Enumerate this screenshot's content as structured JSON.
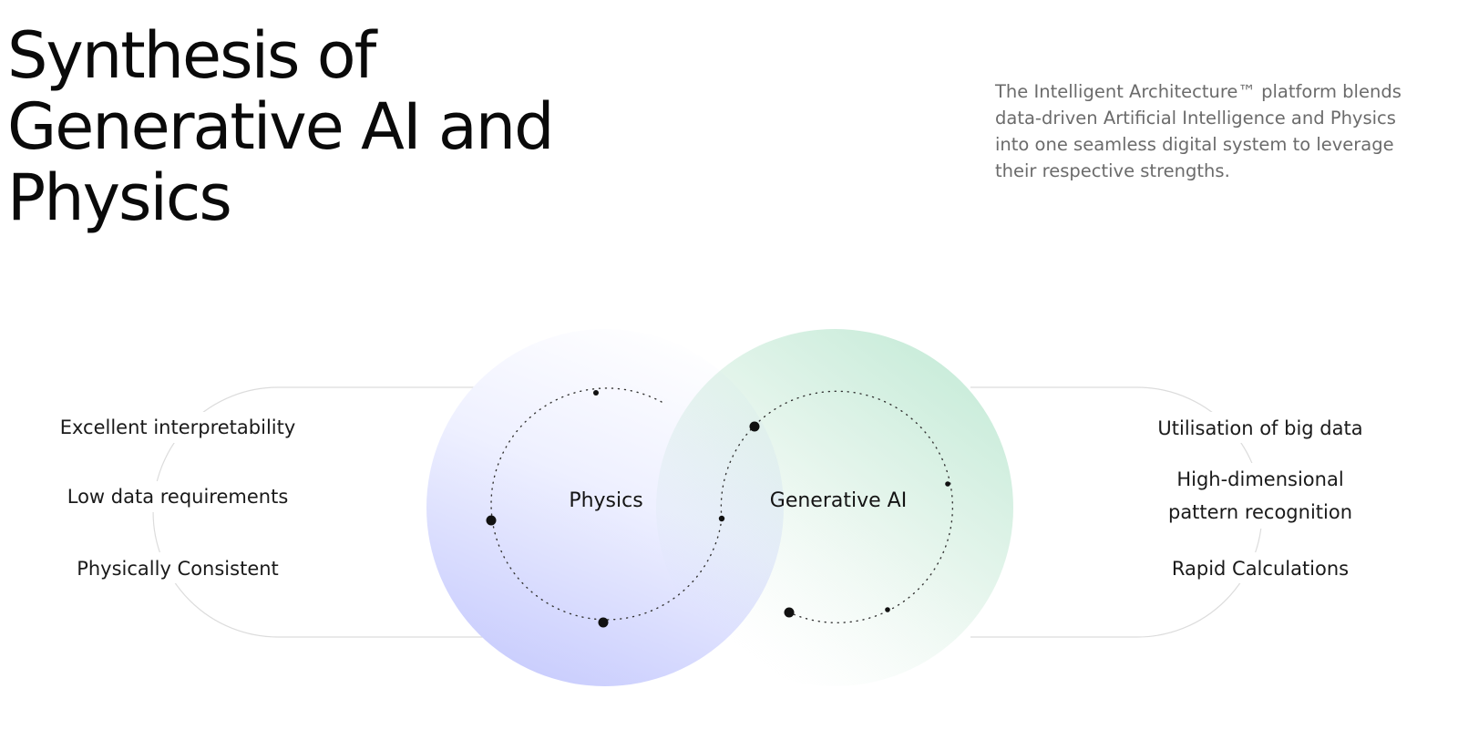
{
  "header": {
    "title_lines": [
      "Synthesis of",
      "Generative AI and",
      "Physics"
    ],
    "description_lines": [
      "The Intelligent Architecture™ platform blends",
      "data-driven Artificial Intelligence and Physics",
      "into one seamless digital system to leverage",
      "their respective strengths."
    ]
  },
  "diagram": {
    "circles": [
      {
        "label": "Physics",
        "color": "#c8ccfd"
      },
      {
        "label": "Generative AI",
        "color": "#c9ecda"
      }
    ],
    "left_strengths": [
      "Excellent interpretability",
      "Low data requirements",
      "Physically Consistent"
    ],
    "right_strengths": [
      "Utilisation of big data",
      "High-dimensional",
      "pattern recognition",
      "Rapid Calculations"
    ]
  }
}
